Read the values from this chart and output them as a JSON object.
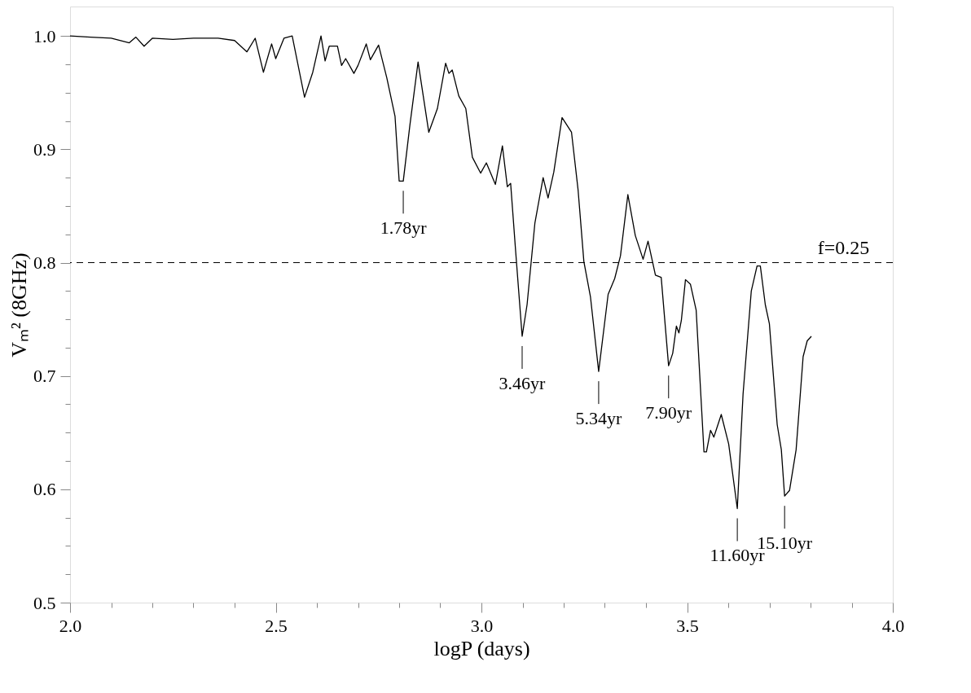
{
  "chart_data": {
    "type": "line",
    "xlabel": "logP (days)",
    "ylabel": "Vₘ² (8GHz)",
    "xlim": [
      2.0,
      4.0
    ],
    "ylim": [
      0.5,
      1.026
    ],
    "xticks": [
      {
        "value": 2.0,
        "label": "2.0"
      },
      {
        "value": 2.1,
        "label": null
      },
      {
        "value": 2.2,
        "label": null
      },
      {
        "value": 2.3,
        "label": null
      },
      {
        "value": 2.4,
        "label": null
      },
      2.5,
      {
        "value": 2.6,
        "label": null
      },
      {
        "value": 2.7,
        "label": null
      },
      {
        "value": 2.8,
        "label": null
      },
      {
        "value": 2.9,
        "label": null
      },
      {
        "value": 3.0,
        "label": "3.0"
      },
      {
        "value": 3.1,
        "label": null
      },
      {
        "value": 3.2,
        "label": null
      },
      {
        "value": 3.3,
        "label": null
      },
      {
        "value": 3.4,
        "label": null
      },
      3.5,
      {
        "value": 3.6,
        "label": null
      },
      {
        "value": 3.7,
        "label": null
      },
      {
        "value": 3.8,
        "label": null
      },
      {
        "value": 3.9,
        "label": null
      },
      {
        "value": 4.0,
        "label": "4.0"
      }
    ],
    "yticks": [
      0.5,
      {
        "value": 0.525,
        "label": null
      },
      {
        "value": 0.55,
        "label": null
      },
      {
        "value": 0.575,
        "label": null
      },
      0.6,
      {
        "value": 0.625,
        "label": null
      },
      {
        "value": 0.65,
        "label": null
      },
      {
        "value": 0.675,
        "label": null
      },
      0.7,
      {
        "value": 0.725,
        "label": null
      },
      {
        "value": 0.75,
        "label": null
      },
      {
        "value": 0.775,
        "label": null
      },
      0.8,
      {
        "value": 0.825,
        "label": null
      },
      {
        "value": 0.85,
        "label": null
      },
      {
        "value": 0.875,
        "label": null
      },
      0.9,
      {
        "value": 0.925,
        "label": null
      },
      {
        "value": 0.95,
        "label": null
      },
      {
        "value": 0.975,
        "label": null
      },
      {
        "value": 1.0,
        "label": "1.0"
      }
    ],
    "grid": false,
    "marker": "none",
    "line_style": "solid",
    "series": [
      {
        "color": "#000000",
        "x": [
          2.0,
          2.05,
          2.1,
          2.144,
          2.16,
          2.18,
          2.2,
          2.25,
          2.3,
          2.36,
          2.4,
          2.43,
          2.45,
          2.47,
          2.49,
          2.5,
          2.52,
          2.54,
          2.57,
          2.59,
          2.61,
          2.62,
          2.63,
          2.65,
          2.66,
          2.67,
          2.69,
          2.7,
          2.72,
          2.73,
          2.75,
          2.77,
          2.79,
          2.8,
          2.81,
          2.826,
          2.846,
          2.872,
          2.883,
          2.893,
          2.913,
          2.921,
          2.929,
          2.945,
          2.962,
          2.978,
          2.998,
          3.012,
          3.034,
          3.051,
          3.063,
          3.071,
          3.083,
          3.099,
          3.111,
          3.13,
          3.15,
          3.162,
          3.176,
          3.196,
          3.219,
          3.235,
          3.249,
          3.265,
          3.285,
          3.308,
          3.324,
          3.338,
          3.356,
          3.374,
          3.393,
          3.405,
          3.423,
          3.437,
          3.455,
          3.465,
          3.474,
          3.48,
          3.486,
          3.496,
          3.508,
          3.522,
          3.541,
          3.547,
          3.557,
          3.565,
          3.583,
          3.601,
          3.622,
          3.636,
          3.656,
          3.67,
          3.678,
          3.69,
          3.7,
          3.719,
          3.729,
          3.737,
          3.749,
          3.765,
          3.782,
          3.792,
          3.802
        ],
        "values": [
          1.0,
          0.999,
          0.998,
          0.994,
          0.999,
          0.991,
          0.998,
          0.997,
          0.998,
          0.998,
          0.996,
          0.986,
          0.998,
          0.968,
          0.993,
          0.98,
          0.998,
          1.0,
          0.946,
          0.968,
          1.0,
          0.978,
          0.991,
          0.991,
          0.974,
          0.98,
          0.967,
          0.974,
          0.993,
          0.979,
          0.992,
          0.963,
          0.929,
          0.872,
          0.872,
          0.921,
          0.977,
          0.915,
          0.926,
          0.936,
          0.976,
          0.967,
          0.97,
          0.947,
          0.936,
          0.893,
          0.879,
          0.888,
          0.869,
          0.903,
          0.867,
          0.87,
          0.811,
          0.735,
          0.763,
          0.835,
          0.875,
          0.857,
          0.88,
          0.928,
          0.915,
          0.864,
          0.801,
          0.77,
          0.704,
          0.772,
          0.786,
          0.806,
          0.86,
          0.824,
          0.803,
          0.819,
          0.789,
          0.787,
          0.709,
          0.72,
          0.744,
          0.738,
          0.749,
          0.785,
          0.781,
          0.758,
          0.633,
          0.633,
          0.652,
          0.646,
          0.666,
          0.64,
          0.583,
          0.684,
          0.775,
          0.797,
          0.797,
          0.763,
          0.746,
          0.657,
          0.635,
          0.594,
          0.599,
          0.635,
          0.717,
          0.731,
          0.735
        ]
      }
    ],
    "ref_lines": [
      {
        "axis": "y",
        "value": 0.8,
        "line_style": "dashed",
        "color": "#000000"
      }
    ],
    "annotations": [
      {
        "text": "1.78yr",
        "x": 2.81,
        "y": 0.872
      },
      {
        "text": "3.46yr",
        "x": 3.099,
        "y": 0.735
      },
      {
        "text": "5.34yr",
        "x": 3.285,
        "y": 0.704
      },
      {
        "text": "7.90yr",
        "x": 3.455,
        "y": 0.709
      },
      {
        "text": "11.60yr",
        "x": 3.622,
        "y": 0.583
      },
      {
        "text": "15.10yr",
        "x": 3.737,
        "y": 0.594
      },
      {
        "text": "f=0.25",
        "x": 3.88,
        "y": 0.8
      }
    ]
  }
}
